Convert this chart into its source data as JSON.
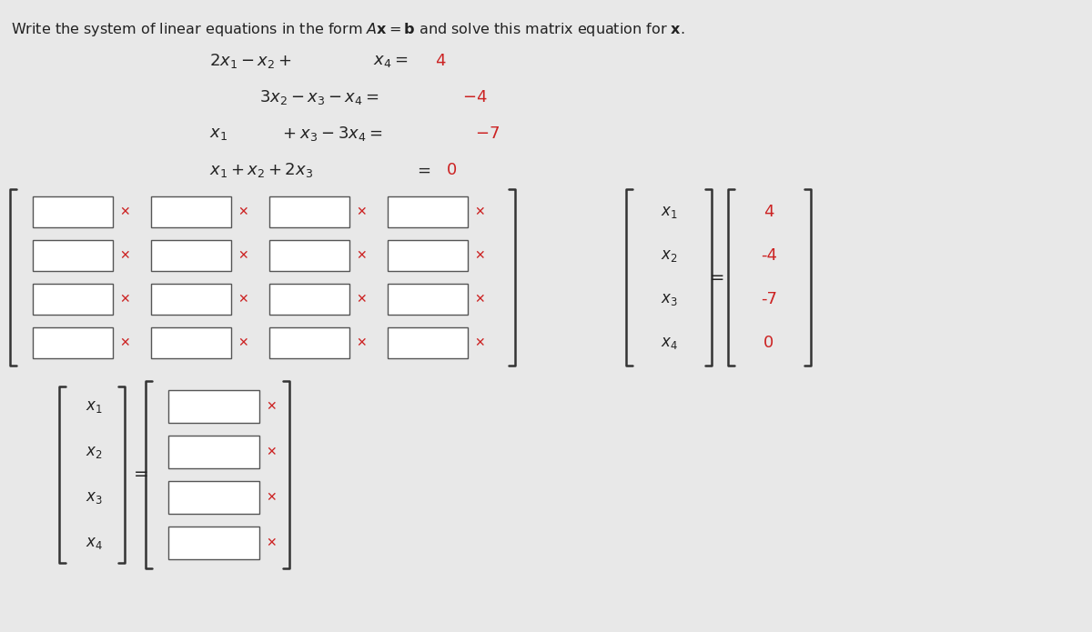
{
  "title": "Write the system of linear equations in the form $A\\mathbf{x} = \\mathbf{b}$ and solve this matrix equation for $\\mathbf{x}$.",
  "bg_color": "#e8e8e8",
  "equations": [
    "2x_1 - x_2 + \\phantom{x_3 +} x_4 = 4",
    "3x_2 - x_3 - x_4 = -4",
    "x_1 \\phantom{+ x_2} + x_3 - 3x_4 = -7",
    "x_1 + x_2 + 2x_3 \\phantom{+ x_4} = 0"
  ],
  "red_color": "#cc2222",
  "box_color": "#ffffff",
  "box_border": "#555555",
  "text_color": "#222222",
  "num_rows": 4,
  "num_cols": 4,
  "b_vector": [
    "4",
    "-4",
    "-7",
    "0"
  ],
  "x_vector": [
    "x_1",
    "x_2",
    "x_3",
    "x_4"
  ]
}
